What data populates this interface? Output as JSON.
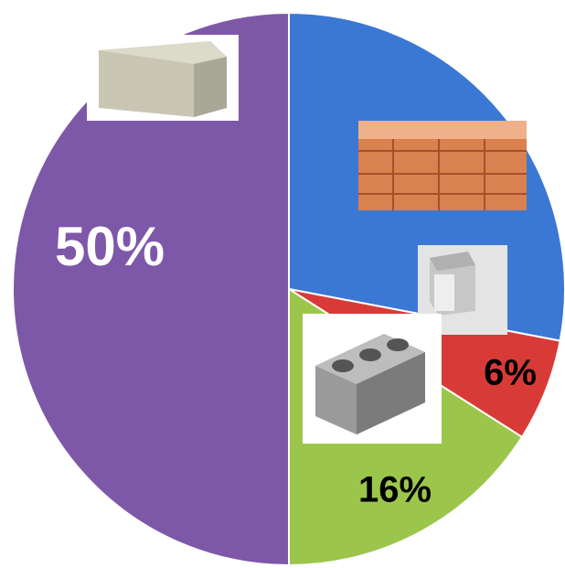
{
  "chart_data": {
    "type": "pie",
    "values": [
      28,
      6,
      16,
      50
    ],
    "value_labels": [
      null,
      "6%",
      "16%",
      "50%"
    ],
    "colors": [
      "#3b78d4",
      "#d83b37",
      "#9cc64b",
      "#7e58a8"
    ]
  }
}
